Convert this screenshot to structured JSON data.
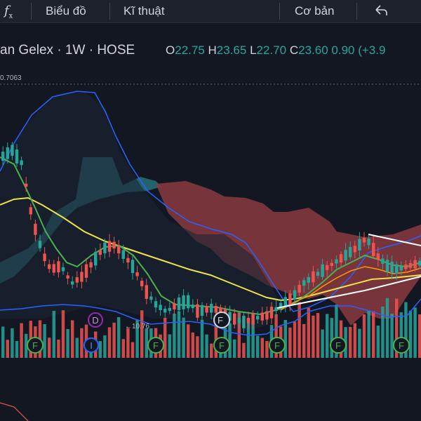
{
  "toolbar": {
    "fx_label": "f",
    "fx_sub": "x",
    "chart_label": "Biểu đồ",
    "tech_label": "Kĩ thuật",
    "fund_label": "Cơ bản",
    "undo_icon": "undo-icon"
  },
  "legend": {
    "symbol": "an Gelex · 1W · HOSE",
    "o_key": "O",
    "o_val": "22.75",
    "h_key": "H",
    "h_val": "23.65",
    "l_key": "L",
    "l_val": "22.70",
    "c_key": "C",
    "c_val": "23.60",
    "change": "0.90",
    "change_pct": "(+3.9"
  },
  "chart": {
    "top_price_label": "0.7063",
    "low_label": "←10.76",
    "markers": {
      "d": "D",
      "i": "I",
      "f": "F",
      "f_star": "F"
    },
    "colors": {
      "up": "#26a69a",
      "down": "#ef5350",
      "cloud_bull": "#2a7d8a",
      "cloud_bear": "#8a3a3e",
      "bollinger": "#2962ff",
      "ma_yellow": "#f0e14a",
      "ma_green": "#4caf50",
      "ma_orange": "#ff9800",
      "trend": "#ffffff"
    }
  }
}
